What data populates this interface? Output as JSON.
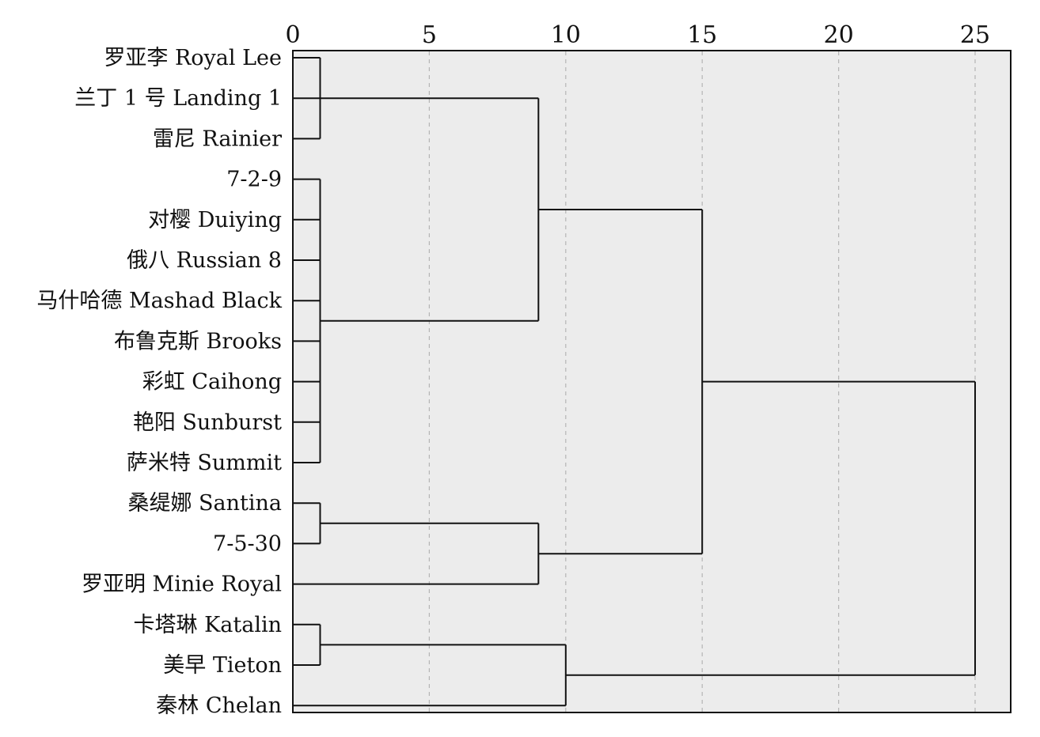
{
  "chart_data": {
    "type": "dendrogram",
    "x_ticks": [
      "0",
      "5",
      "10",
      "15",
      "20",
      "25"
    ],
    "xlim": [
      0,
      25
    ],
    "grid": true,
    "leaves": [
      "罗亚李 Royal Lee",
      "兰丁 1 号 Landing 1",
      "雷尼 Rainier",
      "7-2-9",
      "对樱 Duiying",
      "俄八 Russian 8",
      "马什哈德 Mashad Black",
      "布鲁克斯 Brooks",
      "彩虹 Caihong",
      "艳阳 Sunburst",
      "萨米特 Summit",
      "桑缇娜 Santina",
      "7-5-30",
      "罗亚明 Minie Royal",
      "卡塔琳 Katalin",
      "美早 Tieton",
      "秦林 Chelan"
    ],
    "merges": [
      {
        "id": "A",
        "children": [
          0,
          1,
          2
        ],
        "height": 1
      },
      {
        "id": "B",
        "children": [
          3,
          4,
          5,
          6,
          7,
          8,
          9,
          10
        ],
        "height": 1
      },
      {
        "id": "C",
        "children": [
          11,
          12
        ],
        "height": 1
      },
      {
        "id": "D",
        "children": [
          14,
          15
        ],
        "height": 1
      },
      {
        "id": "E",
        "children": [
          "A",
          "B"
        ],
        "height": 9
      },
      {
        "id": "F",
        "children": [
          "C",
          13
        ],
        "height": 9
      },
      {
        "id": "G",
        "children": [
          "D",
          16
        ],
        "height": 10
      },
      {
        "id": "H",
        "children": [
          "E",
          "F"
        ],
        "height": 15
      },
      {
        "id": "I",
        "children": [
          "H",
          "G"
        ],
        "height": 25
      }
    ]
  }
}
